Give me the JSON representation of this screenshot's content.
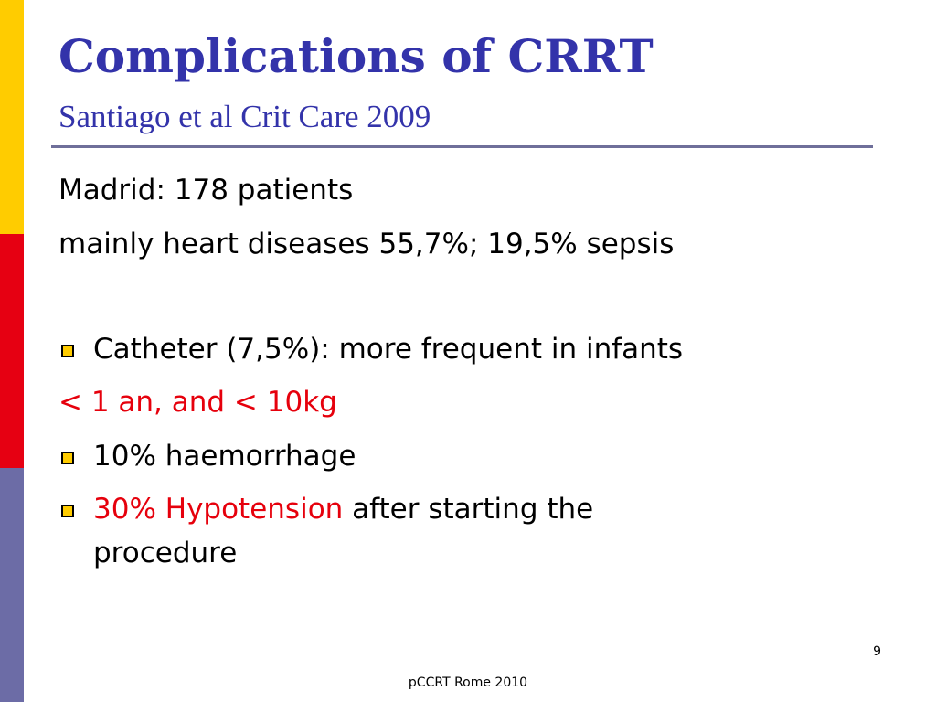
{
  "colors": {
    "title": "#3333aa",
    "text": "#000000",
    "highlight": "#e6000c",
    "bullet_fill": "#ffcc00",
    "rule": "#6f6f9a",
    "band_top": "#ffcc00",
    "band_middle": "#e60012",
    "band_bottom": "#6c6ca6"
  },
  "slide": {
    "title": "Complications of CRRT",
    "subtitle": "Santiago et al Crit Care 2009",
    "intro": [
      "Madrid: 178 patients",
      "mainly heart diseases 55,7%; 19,5% sepsis"
    ],
    "bullets": [
      {
        "text": "Catheter (7,5%): more frequent in infants",
        "continuation": "< 1 an, and < 10kg"
      },
      {
        "text": "10% haemorrhage"
      },
      {
        "highlight": "30% Hypotension",
        "text": " after starting the",
        "continuation": "procedure"
      }
    ],
    "page_number": "9",
    "footer": "pCCRT Rome 2010"
  }
}
